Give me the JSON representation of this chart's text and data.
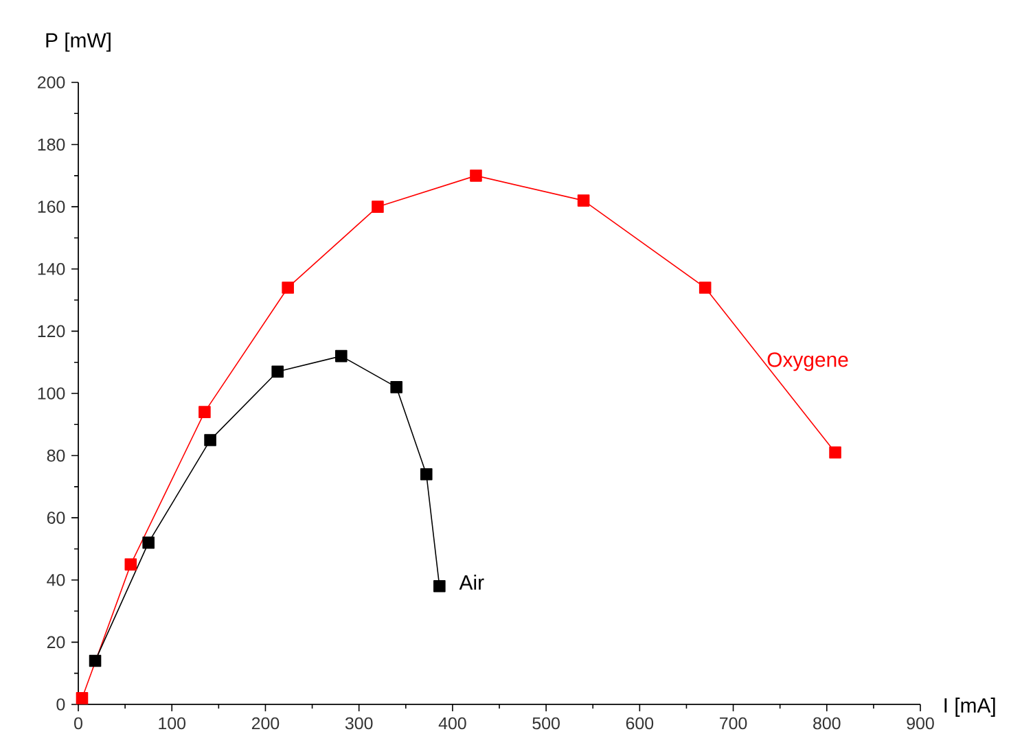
{
  "chart_data": {
    "type": "line",
    "xlabel": "I [mA]",
    "ylabel": "P [mW]",
    "xlim": [
      0,
      900
    ],
    "ylim": [
      0,
      200
    ],
    "xticks": [
      0,
      100,
      200,
      300,
      400,
      500,
      600,
      700,
      800,
      900
    ],
    "yticks": [
      0,
      20,
      40,
      60,
      80,
      100,
      120,
      140,
      160,
      180,
      200
    ],
    "marker": "square",
    "line_style": "solid",
    "series": [
      {
        "name": "Oxygene",
        "color": "#ff0000",
        "x": [
          4,
          56,
          135,
          224,
          320,
          425,
          540,
          670,
          809
        ],
        "values": [
          2,
          45,
          94,
          134,
          160,
          170,
          162,
          134,
          81
        ]
      },
      {
        "name": "Air",
        "color": "#000000",
        "x": [
          18,
          75,
          141,
          213,
          281,
          340,
          372,
          386
        ],
        "values": [
          14,
          52,
          85,
          107,
          112,
          102,
          74,
          38
        ]
      }
    ]
  }
}
